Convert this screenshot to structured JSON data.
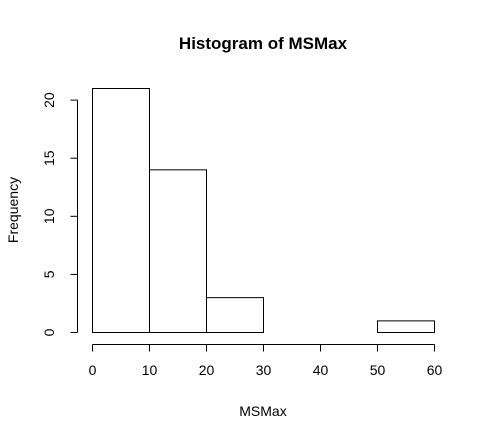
{
  "chart_data": {
    "type": "histogram",
    "title": "Histogram of MSMax",
    "xlabel": "MSMax",
    "ylabel": "Frequency",
    "bins": [
      {
        "start": 0,
        "end": 10,
        "count": 21
      },
      {
        "start": 10,
        "end": 20,
        "count": 14
      },
      {
        "start": 20,
        "end": 30,
        "count": 3
      },
      {
        "start": 30,
        "end": 40,
        "count": 0
      },
      {
        "start": 40,
        "end": 50,
        "count": 0
      },
      {
        "start": 50,
        "end": 60,
        "count": 1
      }
    ],
    "xlim": [
      0,
      60
    ],
    "ylim": [
      0,
      21
    ],
    "x_ticks": [
      0,
      10,
      20,
      30,
      40,
      50,
      60
    ],
    "y_ticks": [
      0,
      5,
      10,
      15,
      20
    ],
    "grid": false,
    "bar_fill": "#ffffff",
    "bar_stroke": "#000000"
  }
}
